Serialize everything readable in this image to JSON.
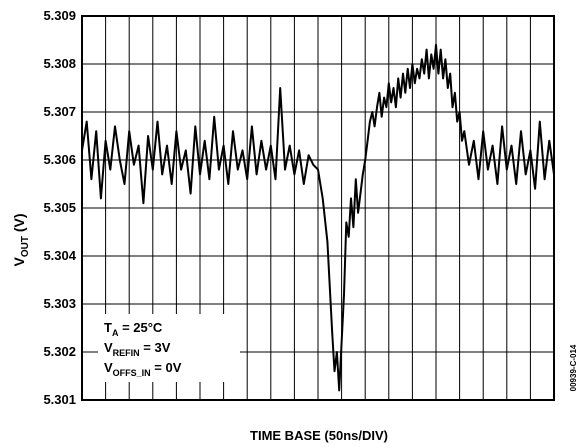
{
  "chart_data": {
    "type": "line",
    "xlabel": "TIME BASE (50ns/DIV)",
    "ylabel": {
      "main": "V",
      "sub": "OUT",
      "tail": " (V)"
    },
    "ylim": [
      5.301,
      5.309
    ],
    "yticks": [
      "5.309",
      "5.308",
      "5.307",
      "5.306",
      "5.305",
      "5.304",
      "5.303",
      "5.302",
      "5.301"
    ],
    "xlim": [
      0,
      10
    ],
    "x_divisions": 10,
    "x_unit": "DIV",
    "grid": true,
    "grid_minor_vertical_per_div": 2,
    "annotations": [
      {
        "main": "T",
        "sub": "A",
        "tail": " = 25°C"
      },
      {
        "main": "V",
        "sub": "REFIN",
        "tail": " = 3V"
      },
      {
        "main": "V",
        "sub": "OFFS_IN",
        "tail": " = 0V"
      }
    ],
    "figure_id": "00939-C-014",
    "series": [
      {
        "color": "#000000",
        "points": [
          [
            0.0,
            5.3062
          ],
          [
            0.1,
            5.3068
          ],
          [
            0.2,
            5.3056
          ],
          [
            0.3,
            5.3066
          ],
          [
            0.4,
            5.3052
          ],
          [
            0.5,
            5.3064
          ],
          [
            0.6,
            5.3058
          ],
          [
            0.7,
            5.3067
          ],
          [
            0.8,
            5.306
          ],
          [
            0.9,
            5.3055
          ],
          [
            1.0,
            5.3066
          ],
          [
            1.1,
            5.3059
          ],
          [
            1.2,
            5.3063
          ],
          [
            1.3,
            5.3051
          ],
          [
            1.4,
            5.3065
          ],
          [
            1.5,
            5.3058
          ],
          [
            1.6,
            5.3068
          ],
          [
            1.7,
            5.3057
          ],
          [
            1.8,
            5.3063
          ],
          [
            1.9,
            5.3055
          ],
          [
            2.0,
            5.3066
          ],
          [
            2.1,
            5.3058
          ],
          [
            2.2,
            5.3062
          ],
          [
            2.3,
            5.3053
          ],
          [
            2.4,
            5.3067
          ],
          [
            2.5,
            5.3057
          ],
          [
            2.6,
            5.3064
          ],
          [
            2.7,
            5.3056
          ],
          [
            2.8,
            5.3069
          ],
          [
            2.9,
            5.3058
          ],
          [
            3.0,
            5.3063
          ],
          [
            3.1,
            5.3055
          ],
          [
            3.2,
            5.3066
          ],
          [
            3.3,
            5.3058
          ],
          [
            3.4,
            5.3062
          ],
          [
            3.5,
            5.3056
          ],
          [
            3.6,
            5.3067
          ],
          [
            3.7,
            5.3057
          ],
          [
            3.8,
            5.3064
          ],
          [
            3.9,
            5.3058
          ],
          [
            4.0,
            5.3063
          ],
          [
            4.1,
            5.3056
          ],
          [
            4.2,
            5.3075
          ],
          [
            4.3,
            5.3058
          ],
          [
            4.4,
            5.3063
          ],
          [
            4.5,
            5.3057
          ],
          [
            4.6,
            5.3062
          ],
          [
            4.7,
            5.3055
          ],
          [
            4.8,
            5.3061
          ],
          [
            4.9,
            5.3059
          ],
          [
            5.0,
            5.3058
          ],
          [
            5.1,
            5.3052
          ],
          [
            5.2,
            5.3043
          ],
          [
            5.3,
            5.3024
          ],
          [
            5.35,
            5.3016
          ],
          [
            5.4,
            5.302
          ],
          [
            5.45,
            5.3012
          ],
          [
            5.55,
            5.3032
          ],
          [
            5.6,
            5.3047
          ],
          [
            5.65,
            5.3044
          ],
          [
            5.7,
            5.3052
          ],
          [
            5.75,
            5.3046
          ],
          [
            5.8,
            5.3056
          ],
          [
            5.85,
            5.3049
          ],
          [
            5.95,
            5.3057
          ],
          [
            6.0,
            5.306
          ],
          [
            6.05,
            5.3064
          ],
          [
            6.1,
            5.3068
          ],
          [
            6.15,
            5.307
          ],
          [
            6.2,
            5.3067
          ],
          [
            6.25,
            5.3071
          ],
          [
            6.3,
            5.3074
          ],
          [
            6.35,
            5.3069
          ],
          [
            6.4,
            5.3073
          ],
          [
            6.45,
            5.3071
          ],
          [
            6.5,
            5.3076
          ],
          [
            6.55,
            5.3072
          ],
          [
            6.6,
            5.3075
          ],
          [
            6.65,
            5.3071
          ],
          [
            6.7,
            5.3077
          ],
          [
            6.75,
            5.3073
          ],
          [
            6.8,
            5.3078
          ],
          [
            6.85,
            5.3074
          ],
          [
            6.9,
            5.3079
          ],
          [
            6.95,
            5.3075
          ],
          [
            7.0,
            5.308
          ],
          [
            7.05,
            5.3076
          ],
          [
            7.1,
            5.3079
          ],
          [
            7.15,
            5.3077
          ],
          [
            7.2,
            5.3081
          ],
          [
            7.25,
            5.3078
          ],
          [
            7.3,
            5.3083
          ],
          [
            7.35,
            5.3077
          ],
          [
            7.4,
            5.3082
          ],
          [
            7.45,
            5.3079
          ],
          [
            7.5,
            5.3084
          ],
          [
            7.55,
            5.3078
          ],
          [
            7.6,
            5.3083
          ],
          [
            7.65,
            5.3077
          ],
          [
            7.7,
            5.3081
          ],
          [
            7.75,
            5.3075
          ],
          [
            7.8,
            5.3078
          ],
          [
            7.85,
            5.3071
          ],
          [
            7.9,
            5.3074
          ],
          [
            7.95,
            5.3068
          ],
          [
            8.0,
            5.307
          ],
          [
            8.05,
            5.3064
          ],
          [
            8.1,
            5.3066
          ],
          [
            8.2,
            5.3059
          ],
          [
            8.3,
            5.3064
          ],
          [
            8.4,
            5.3056
          ],
          [
            8.5,
            5.3066
          ],
          [
            8.6,
            5.3058
          ],
          [
            8.7,
            5.3063
          ],
          [
            8.8,
            5.3055
          ],
          [
            8.9,
            5.3067
          ],
          [
            9.0,
            5.3058
          ],
          [
            9.1,
            5.3063
          ],
          [
            9.2,
            5.3055
          ],
          [
            9.3,
            5.3066
          ],
          [
            9.4,
            5.3057
          ],
          [
            9.5,
            5.3062
          ],
          [
            9.6,
            5.3054
          ],
          [
            9.7,
            5.3068
          ],
          [
            9.8,
            5.3056
          ],
          [
            9.9,
            5.3064
          ],
          [
            10.0,
            5.3057
          ]
        ]
      }
    ]
  }
}
